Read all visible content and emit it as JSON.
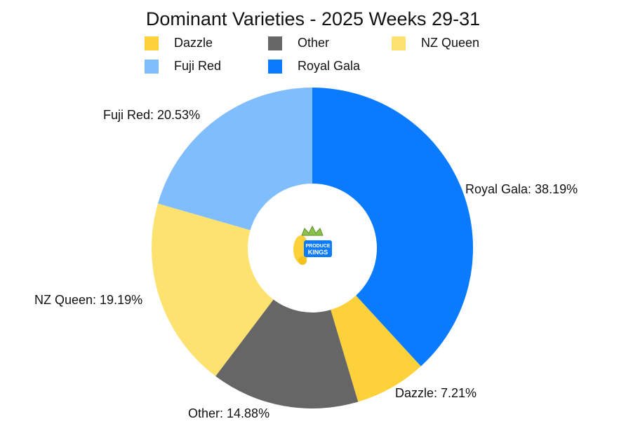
{
  "chart_data": {
    "type": "pie",
    "donut": true,
    "title": "Dominant Varieties - 2025 Weeks 29-31",
    "legend_position": "top",
    "slices": [
      {
        "name": "Royal Gala",
        "value": 38.19,
        "label": "Royal Gala: 38.19%",
        "color": "#0A7BFF"
      },
      {
        "name": "Dazzle",
        "value": 7.21,
        "label": "Dazzle: 7.21%",
        "color": "#FDD13A"
      },
      {
        "name": "Other",
        "value": 14.88,
        "label": "Other: 14.88%",
        "color": "#666666"
      },
      {
        "name": "NZ Queen",
        "value": 19.19,
        "label": "NZ Queen: 19.19%",
        "color": "#FEE270"
      },
      {
        "name": "Fuji Red",
        "value": 20.53,
        "label": "Fuji Red: 20.53%",
        "color": "#80BDFD"
      }
    ],
    "legend": [
      {
        "name": "Dazzle",
        "color": "#FDD13A"
      },
      {
        "name": "Other",
        "color": "#666666"
      },
      {
        "name": "NZ Queen",
        "color": "#FEE270"
      },
      {
        "name": "Fuji Red",
        "color": "#80BDFD"
      },
      {
        "name": "Royal Gala",
        "color": "#0A7BFF"
      }
    ]
  },
  "logo": {
    "line1": "PRODUCE",
    "line2": "KINGS",
    "colors": [
      "#FDD13A",
      "#0A7BFF",
      "#8BC34A"
    ]
  }
}
